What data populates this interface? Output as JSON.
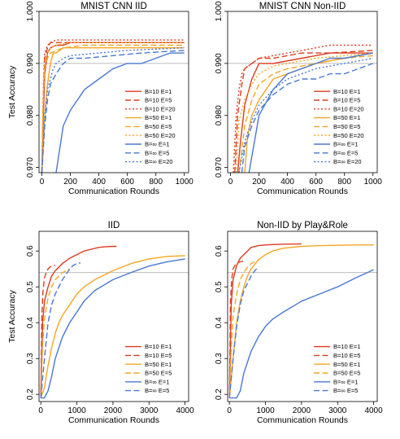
{
  "colors": {
    "red": "#dc3b1f",
    "orange": "#f5a623",
    "blue": "#4a78d4",
    "refline": "#bdbdbd"
  },
  "chart_data": [
    {
      "type": "line",
      "title": "MNIST CNN IID",
      "xlabel": "Communication Rounds",
      "ylabel": "Test Accuracy",
      "xlim": [
        -20,
        1030
      ],
      "ylim": [
        0.969,
        1.0
      ],
      "xticks": [
        0,
        200,
        400,
        600,
        800,
        1000
      ],
      "yticks": [
        0.97,
        0.98,
        0.99,
        1.0
      ],
      "ytick_labels": [
        "0.970",
        "0.980",
        "0.990",
        "1.000"
      ],
      "reference_line": 0.99,
      "legend_position": "bottom-right",
      "series": [
        {
          "name": "B=10  E=1",
          "color": "red",
          "dash": "solid",
          "x": [
            0,
            10,
            20,
            40,
            60,
            100,
            150,
            200,
            1000
          ],
          "y": [
            0.969,
            0.98,
            0.988,
            0.992,
            0.993,
            0.9935,
            0.9935,
            0.994,
            0.994
          ]
        },
        {
          "name": "B=10  E=5",
          "color": "red",
          "dash": "dashed",
          "x": [
            0,
            10,
            20,
            40,
            60,
            100,
            200,
            1000
          ],
          "y": [
            0.969,
            0.984,
            0.991,
            0.993,
            0.994,
            0.994,
            0.994,
            0.994
          ]
        },
        {
          "name": "B=10  E=20",
          "color": "red",
          "dash": "dotted",
          "x": [
            0,
            10,
            20,
            40,
            60,
            100,
            200,
            1000
          ],
          "y": [
            0.969,
            0.986,
            0.992,
            0.9935,
            0.994,
            0.9945,
            0.9945,
            0.9945
          ]
        },
        {
          "name": "B=50  E=1",
          "color": "orange",
          "dash": "solid",
          "x": [
            0,
            20,
            40,
            60,
            80,
            100,
            150,
            200,
            400,
            1000
          ],
          "y": [
            0.969,
            0.98,
            0.986,
            0.99,
            0.992,
            0.992,
            0.993,
            0.993,
            0.993,
            0.993
          ]
        },
        {
          "name": "B=50  E=5",
          "color": "orange",
          "dash": "dashed",
          "x": [
            0,
            10,
            20,
            40,
            60,
            100,
            150,
            300,
            1000
          ],
          "y": [
            0.969,
            0.984,
            0.989,
            0.991,
            0.992,
            0.9925,
            0.993,
            0.9935,
            0.9935
          ]
        },
        {
          "name": "B=50  E=20",
          "color": "orange",
          "dash": "dotted",
          "x": [
            0,
            10,
            20,
            40,
            60,
            100,
            200,
            1000
          ],
          "y": [
            0.969,
            0.985,
            0.99,
            0.992,
            0.993,
            0.9935,
            0.994,
            0.994
          ]
        },
        {
          "name": "B=∞  E=1",
          "color": "blue",
          "dash": "solid",
          "x": [
            100,
            150,
            200,
            300,
            400,
            500,
            600,
            700,
            800,
            900,
            1000
          ],
          "y": [
            0.969,
            0.978,
            0.981,
            0.985,
            0.987,
            0.989,
            0.99,
            0.99,
            0.991,
            0.992,
            0.992
          ]
        },
        {
          "name": "B=∞  E=5",
          "color": "blue",
          "dash": "dashed",
          "x": [
            0,
            20,
            40,
            60,
            100,
            150,
            200,
            300,
            500,
            700,
            1000
          ],
          "y": [
            0.969,
            0.978,
            0.983,
            0.986,
            0.988,
            0.99,
            0.991,
            0.991,
            0.9915,
            0.992,
            0.9925
          ]
        },
        {
          "name": "B=∞  E=20",
          "color": "blue",
          "dash": "dotted",
          "x": [
            0,
            20,
            40,
            60,
            80,
            100,
            150,
            200,
            400,
            600,
            1000
          ],
          "y": [
            0.969,
            0.98,
            0.985,
            0.987,
            0.989,
            0.99,
            0.991,
            0.9915,
            0.992,
            0.9925,
            0.993
          ]
        }
      ]
    },
    {
      "type": "line",
      "title": "MNIST CNN Non-IID",
      "xlabel": "Communication Rounds",
      "ylabel": "",
      "xlim": [
        -20,
        1030
      ],
      "ylim": [
        0.969,
        1.0
      ],
      "xticks": [
        0,
        200,
        400,
        600,
        800,
        1000
      ],
      "yticks": [
        0.97,
        0.98,
        0.99,
        1.0
      ],
      "ytick_labels": [
        "0.970",
        "0.980",
        "0.990",
        "1.000"
      ],
      "reference_line": 0.99,
      "legend_position": "bottom-right",
      "series": [
        {
          "name": "B=10  E=1",
          "color": "red",
          "dash": "solid",
          "x": [
            50,
            70,
            100,
            150,
            200,
            300,
            500,
            700,
            1000
          ],
          "y": [
            0.969,
            0.975,
            0.982,
            0.987,
            0.99,
            0.99,
            0.991,
            0.992,
            0.992
          ]
        },
        {
          "name": "B=10  E=5",
          "color": "red",
          "dash": "dashed",
          "x": [
            30,
            50,
            80,
            100,
            150,
            200,
            300,
            500,
            700,
            1000
          ],
          "y": [
            0.969,
            0.98,
            0.986,
            0.989,
            0.99,
            0.991,
            0.991,
            0.992,
            0.992,
            0.9925
          ]
        },
        {
          "name": "B=10  E=20",
          "color": "red",
          "dash": "dotted",
          "x": [
            20,
            40,
            60,
            80,
            100,
            150,
            200,
            300,
            500,
            700,
            1000
          ],
          "y": [
            0.969,
            0.98,
            0.985,
            0.988,
            0.989,
            0.99,
            0.991,
            0.9915,
            0.9925,
            0.9935,
            0.9935
          ]
        },
        {
          "name": "B=50  E=1",
          "color": "orange",
          "dash": "solid",
          "x": [
            100,
            120,
            150,
            200,
            250,
            300,
            400,
            500,
            600,
            800,
            1000
          ],
          "y": [
            0.969,
            0.976,
            0.98,
            0.983,
            0.985,
            0.987,
            0.988,
            0.989,
            0.99,
            0.991,
            0.992
          ]
        },
        {
          "name": "B=50  E=5",
          "color": "orange",
          "dash": "dashed",
          "x": [
            60,
            100,
            150,
            200,
            300,
            400,
            600,
            800,
            1000
          ],
          "y": [
            0.969,
            0.978,
            0.983,
            0.986,
            0.988,
            0.989,
            0.99,
            0.991,
            0.9915
          ]
        },
        {
          "name": "B=50  E=20",
          "color": "orange",
          "dash": "dotted",
          "x": [
            40,
            60,
            100,
            150,
            200,
            300,
            400,
            600,
            800,
            1000
          ],
          "y": [
            0.969,
            0.979,
            0.983,
            0.986,
            0.988,
            0.9895,
            0.99,
            0.991,
            0.9915,
            0.992
          ]
        },
        {
          "name": "B=∞  E=1",
          "color": "blue",
          "dash": "solid",
          "x": [
            130,
            200,
            300,
            400,
            500,
            600,
            700,
            800,
            1000
          ],
          "y": [
            0.969,
            0.98,
            0.985,
            0.988,
            0.989,
            0.99,
            0.991,
            0.991,
            0.992
          ]
        },
        {
          "name": "B=∞  E=5",
          "color": "blue",
          "dash": "dashed",
          "x": [
            80,
            100,
            150,
            200,
            300,
            400,
            500,
            600,
            700,
            800,
            1000
          ],
          "y": [
            0.969,
            0.974,
            0.978,
            0.981,
            0.984,
            0.986,
            0.987,
            0.987,
            0.988,
            0.988,
            0.99
          ]
        },
        {
          "name": "B=∞  E=20",
          "color": "blue",
          "dash": "dotted",
          "x": [
            60,
            100,
            150,
            200,
            300,
            400,
            600,
            800,
            1000
          ],
          "y": [
            0.969,
            0.975,
            0.979,
            0.982,
            0.985,
            0.987,
            0.989,
            0.99,
            0.991
          ]
        }
      ]
    },
    {
      "type": "line",
      "title": "IID",
      "xlabel": "Communication Rounds",
      "ylabel": "Test Accuracy",
      "xlim": [
        -50,
        4100
      ],
      "ylim": [
        0.18,
        0.655
      ],
      "xticks": [
        0,
        1000,
        2000,
        3000,
        4000
      ],
      "yticks": [
        0.2,
        0.3,
        0.4,
        0.5,
        0.6
      ],
      "ytick_labels": [
        "0.2",
        "0.3",
        "0.4",
        "0.5",
        "0.6"
      ],
      "reference_line": 0.54,
      "legend_position": "bottom-right",
      "series": [
        {
          "name": "B=10  E=1",
          "color": "red",
          "dash": "solid",
          "x": [
            0,
            50,
            100,
            200,
            300,
            400,
            600,
            800,
            1000,
            1200,
            1400,
            1600,
            1800,
            2000,
            2100
          ],
          "y": [
            0.19,
            0.4,
            0.46,
            0.5,
            0.53,
            0.545,
            0.565,
            0.58,
            0.59,
            0.6,
            0.605,
            0.61,
            0.612,
            0.613,
            0.613
          ]
        },
        {
          "name": "B=10  E=5",
          "color": "red",
          "dash": "dashed",
          "x": [
            0,
            30,
            60,
            100,
            150,
            200,
            250,
            300,
            400
          ],
          "y": [
            0.19,
            0.42,
            0.49,
            0.525,
            0.54,
            0.55,
            0.555,
            0.558,
            0.56
          ]
        },
        {
          "name": "B=50  E=1",
          "color": "orange",
          "dash": "solid",
          "x": [
            0,
            100,
            200,
            300,
            400,
            500,
            600,
            800,
            1000,
            1200,
            1500,
            2000,
            2500,
            3000,
            3500,
            4000
          ],
          "y": [
            0.19,
            0.22,
            0.28,
            0.33,
            0.37,
            0.4,
            0.42,
            0.45,
            0.48,
            0.5,
            0.52,
            0.545,
            0.565,
            0.578,
            0.585,
            0.587
          ]
        },
        {
          "name": "B=50  E=5",
          "color": "orange",
          "dash": "dashed",
          "x": [
            0,
            50,
            100,
            200,
            300,
            400,
            500,
            600,
            700,
            800
          ],
          "y": [
            0.19,
            0.34,
            0.41,
            0.47,
            0.5,
            0.52,
            0.53,
            0.54,
            0.545,
            0.55
          ]
        },
        {
          "name": "B=∞  E=1",
          "color": "blue",
          "dash": "solid",
          "x": [
            0,
            100,
            200,
            300,
            400,
            500,
            600,
            700,
            800,
            1000,
            1200,
            1500,
            2000,
            2500,
            3000,
            3500,
            4000
          ],
          "y": [
            0.19,
            0.19,
            0.21,
            0.25,
            0.3,
            0.33,
            0.36,
            0.38,
            0.4,
            0.43,
            0.46,
            0.49,
            0.52,
            0.54,
            0.558,
            0.57,
            0.578
          ]
        },
        {
          "name": "B=∞  E=5",
          "color": "blue",
          "dash": "dashed",
          "x": [
            0,
            100,
            200,
            300,
            400,
            500,
            600,
            700,
            800,
            900,
            1000,
            1100
          ],
          "y": [
            0.19,
            0.3,
            0.4,
            0.45,
            0.48,
            0.5,
            0.52,
            0.535,
            0.55,
            0.56,
            0.565,
            0.567
          ]
        }
      ]
    },
    {
      "type": "line",
      "title": "Non-IID by Play&Role",
      "xlabel": "Communication Rounds",
      "ylabel": "",
      "xlim": [
        -50,
        4100
      ],
      "ylim": [
        0.18,
        0.655
      ],
      "xticks": [
        0,
        1000,
        2000,
        3000,
        4000
      ],
      "yticks": [
        0.2,
        0.3,
        0.4,
        0.5,
        0.6
      ],
      "ytick_labels": [
        "0.2",
        "0.3",
        "0.4",
        "0.5",
        "0.6"
      ],
      "reference_line": 0.54,
      "legend_position": "bottom-right",
      "series": [
        {
          "name": "B=10  E=1",
          "color": "red",
          "dash": "solid",
          "x": [
            0,
            50,
            100,
            200,
            300,
            400,
            500,
            600,
            800,
            1000,
            1200,
            1500,
            2000
          ],
          "y": [
            0.19,
            0.45,
            0.52,
            0.56,
            0.58,
            0.59,
            0.6,
            0.61,
            0.615,
            0.617,
            0.618,
            0.619,
            0.62
          ]
        },
        {
          "name": "B=10  E=5",
          "color": "red",
          "dash": "dashed",
          "x": [
            0,
            30,
            60,
            100,
            150,
            200,
            250,
            300,
            400
          ],
          "y": [
            0.19,
            0.46,
            0.52,
            0.55,
            0.56,
            0.565,
            0.568,
            0.57,
            0.572
          ]
        },
        {
          "name": "B=50  E=1",
          "color": "orange",
          "dash": "solid",
          "x": [
            0,
            100,
            200,
            300,
            400,
            500,
            600,
            800,
            1000,
            1200,
            1500,
            2000,
            2500,
            3000,
            3500,
            4000
          ],
          "y": [
            0.19,
            0.3,
            0.4,
            0.46,
            0.5,
            0.53,
            0.55,
            0.575,
            0.59,
            0.6,
            0.608,
            0.613,
            0.615,
            0.616,
            0.617,
            0.617
          ]
        },
        {
          "name": "B=50  E=5",
          "color": "orange",
          "dash": "dashed",
          "x": [
            0,
            50,
            100,
            200,
            300,
            400,
            500,
            600,
            700,
            800
          ],
          "y": [
            0.19,
            0.33,
            0.42,
            0.48,
            0.52,
            0.54,
            0.555,
            0.565,
            0.57,
            0.575
          ]
        },
        {
          "name": "B=∞  E=1",
          "color": "blue",
          "dash": "solid",
          "x": [
            0,
            200,
            300,
            400,
            500,
            600,
            700,
            800,
            1000,
            1200,
            1500,
            2000,
            2500,
            3000,
            3500,
            4000
          ],
          "y": [
            0.19,
            0.19,
            0.21,
            0.26,
            0.29,
            0.32,
            0.34,
            0.36,
            0.39,
            0.41,
            0.43,
            0.46,
            0.48,
            0.5,
            0.525,
            0.548
          ]
        },
        {
          "name": "B=∞  E=5",
          "color": "blue",
          "dash": "dashed",
          "x": [
            0,
            100,
            200,
            300,
            400,
            500,
            600,
            700,
            800
          ],
          "y": [
            0.19,
            0.3,
            0.39,
            0.45,
            0.49,
            0.51,
            0.53,
            0.545,
            0.555
          ]
        }
      ]
    }
  ]
}
